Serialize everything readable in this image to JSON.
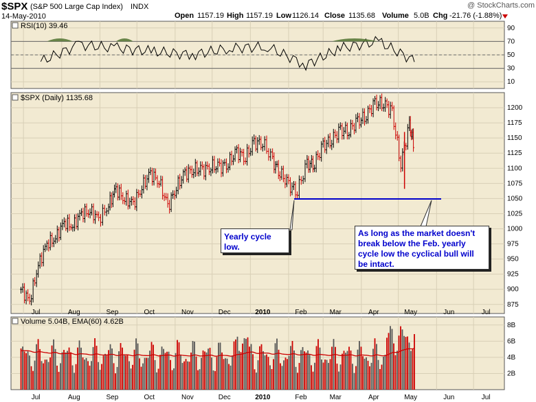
{
  "header": {
    "symbol": "$SPX",
    "name": "(S&P 500 Large Cap Index)",
    "exchange": "INDX",
    "date": "14-May-2010",
    "open_label": "Open",
    "open": "1157.19",
    "high_label": "High",
    "high": "1157.19",
    "low_label": "Low",
    "low": "1126.14",
    "close_label": "Close",
    "close": "1135.68",
    "volume_label": "Volume",
    "volume": "5.0B",
    "chg_label": "Chg",
    "chg": "-21.76 (-1.88%)",
    "watermark": "@ StockCharts.com"
  },
  "panels": {
    "rsi_label": "RSI(10) 39.46",
    "price_label": "$SPX (Daily) 1135.68",
    "volume_label": "Volume 5.04B, EMA(60) 4.62B"
  },
  "annotations": {
    "yearly_low": "Yearly cycle low.",
    "bull_note": "As long as the market doesn't break below the Feb. yearly cycle low the cyclical bull will be intact."
  },
  "colors": {
    "panel_bg": "#f2ead2",
    "up": "#000000",
    "down": "#cc0000",
    "support_line": "#0000cc",
    "ema": "#cc0000",
    "rsi_fill": "#5a7a3a",
    "grid": "#d8cfb6"
  },
  "chart_data": [
    {
      "type": "line",
      "panel": "rsi",
      "title": "RSI(10) 39.46",
      "ylim": [
        0,
        100
      ],
      "y_ticks": [
        10,
        30,
        50,
        70,
        90
      ],
      "reference_lines": [
        30,
        50,
        70
      ],
      "x_tick_labels": [
        "Jul",
        "Aug",
        "Sep",
        "Oct",
        "Nov",
        "Dec",
        "2010",
        "Feb",
        "Mar",
        "Apr",
        "May",
        "Jun",
        "Jul"
      ],
      "x": [
        "2009-07",
        "2009-08",
        "2009-09",
        "2009-10",
        "2009-11",
        "2009-12",
        "2010-01",
        "2010-02",
        "2010-03",
        "2010-04",
        "2010-05"
      ],
      "values": [
        40,
        65,
        60,
        55,
        50,
        60,
        62,
        35,
        60,
        70,
        40
      ],
      "last": 39.46
    },
    {
      "type": "line",
      "panel": "price",
      "title": "$SPX (Daily) 1135.68",
      "ylim": [
        860,
        1225
      ],
      "y_ticks": [
        875,
        900,
        925,
        950,
        975,
        1000,
        1025,
        1050,
        1075,
        1100,
        1125,
        1150,
        1175,
        1200
      ],
      "x_tick_labels": [
        "Jul",
        "Aug",
        "Sep",
        "Oct",
        "Nov",
        "Dec",
        "2010",
        "Feb",
        "Mar",
        "Apr",
        "May",
        "Jun",
        "Jul"
      ],
      "series": [
        {
          "x": [
            "2009-06-29",
            "2009-07-06",
            "2009-07-13",
            "2009-07-20",
            "2009-07-27",
            "2009-08-03",
            "2009-08-10",
            "2009-08-17",
            "2009-08-24",
            "2009-08-31",
            "2009-09-08",
            "2009-09-14",
            "2009-09-21",
            "2009-09-28",
            "2009-10-05",
            "2009-10-12",
            "2009-10-19",
            "2009-10-26",
            "2009-11-02",
            "2009-11-09",
            "2009-11-16",
            "2009-11-23",
            "2009-11-30",
            "2009-12-07",
            "2009-12-14",
            "2009-12-21",
            "2009-12-28",
            "2010-01-04",
            "2010-01-11",
            "2010-01-19",
            "2010-01-25",
            "2010-02-01",
            "2010-02-08",
            "2010-02-16",
            "2010-02-22",
            "2010-03-01",
            "2010-03-08",
            "2010-03-15",
            "2010-03-22",
            "2010-03-29",
            "2010-04-05",
            "2010-04-12",
            "2010-04-19",
            "2010-04-26",
            "2010-05-03",
            "2010-05-10",
            "2010-05-14"
          ],
          "values": [
            900,
            880,
            940,
            975,
            985,
            1010,
            1005,
            1025,
            1030,
            1015,
            1040,
            1065,
            1050,
            1040,
            1070,
            1090,
            1080,
            1035,
            1070,
            1090,
            1100,
            1095,
            1105,
            1100,
            1110,
            1125,
            1120,
            1140,
            1145,
            1110,
            1095,
            1070,
            1065,
            1105,
            1110,
            1135,
            1150,
            1160,
            1165,
            1175,
            1190,
            1205,
            1210,
            1190,
            1110,
            1170,
            1136
          ]
        }
      ]
    },
    {
      "type": "bar",
      "panel": "volume",
      "title": "Volume 5.04B, EMA(60) 4.62B",
      "ylim": [
        0,
        9
      ],
      "y_ticks": [
        2,
        4,
        6,
        8
      ],
      "y_tick_labels": [
        "2B",
        "4B",
        "6B",
        "8B"
      ],
      "x_tick_labels": [
        "Jul",
        "Aug",
        "Sep",
        "Oct",
        "Nov",
        "Dec",
        "2010",
        "Feb",
        "Mar",
        "Apr",
        "May",
        "Jun",
        "Jul"
      ],
      "series": [
        {
          "name": "Volume 5.04B",
          "last": 5.04
        },
        {
          "name": "EMA(60) 4.62B",
          "last": 4.62
        }
      ]
    }
  ],
  "support": {
    "level": 1044.5,
    "from": "2010-02-05",
    "to": "2010-06-10"
  }
}
